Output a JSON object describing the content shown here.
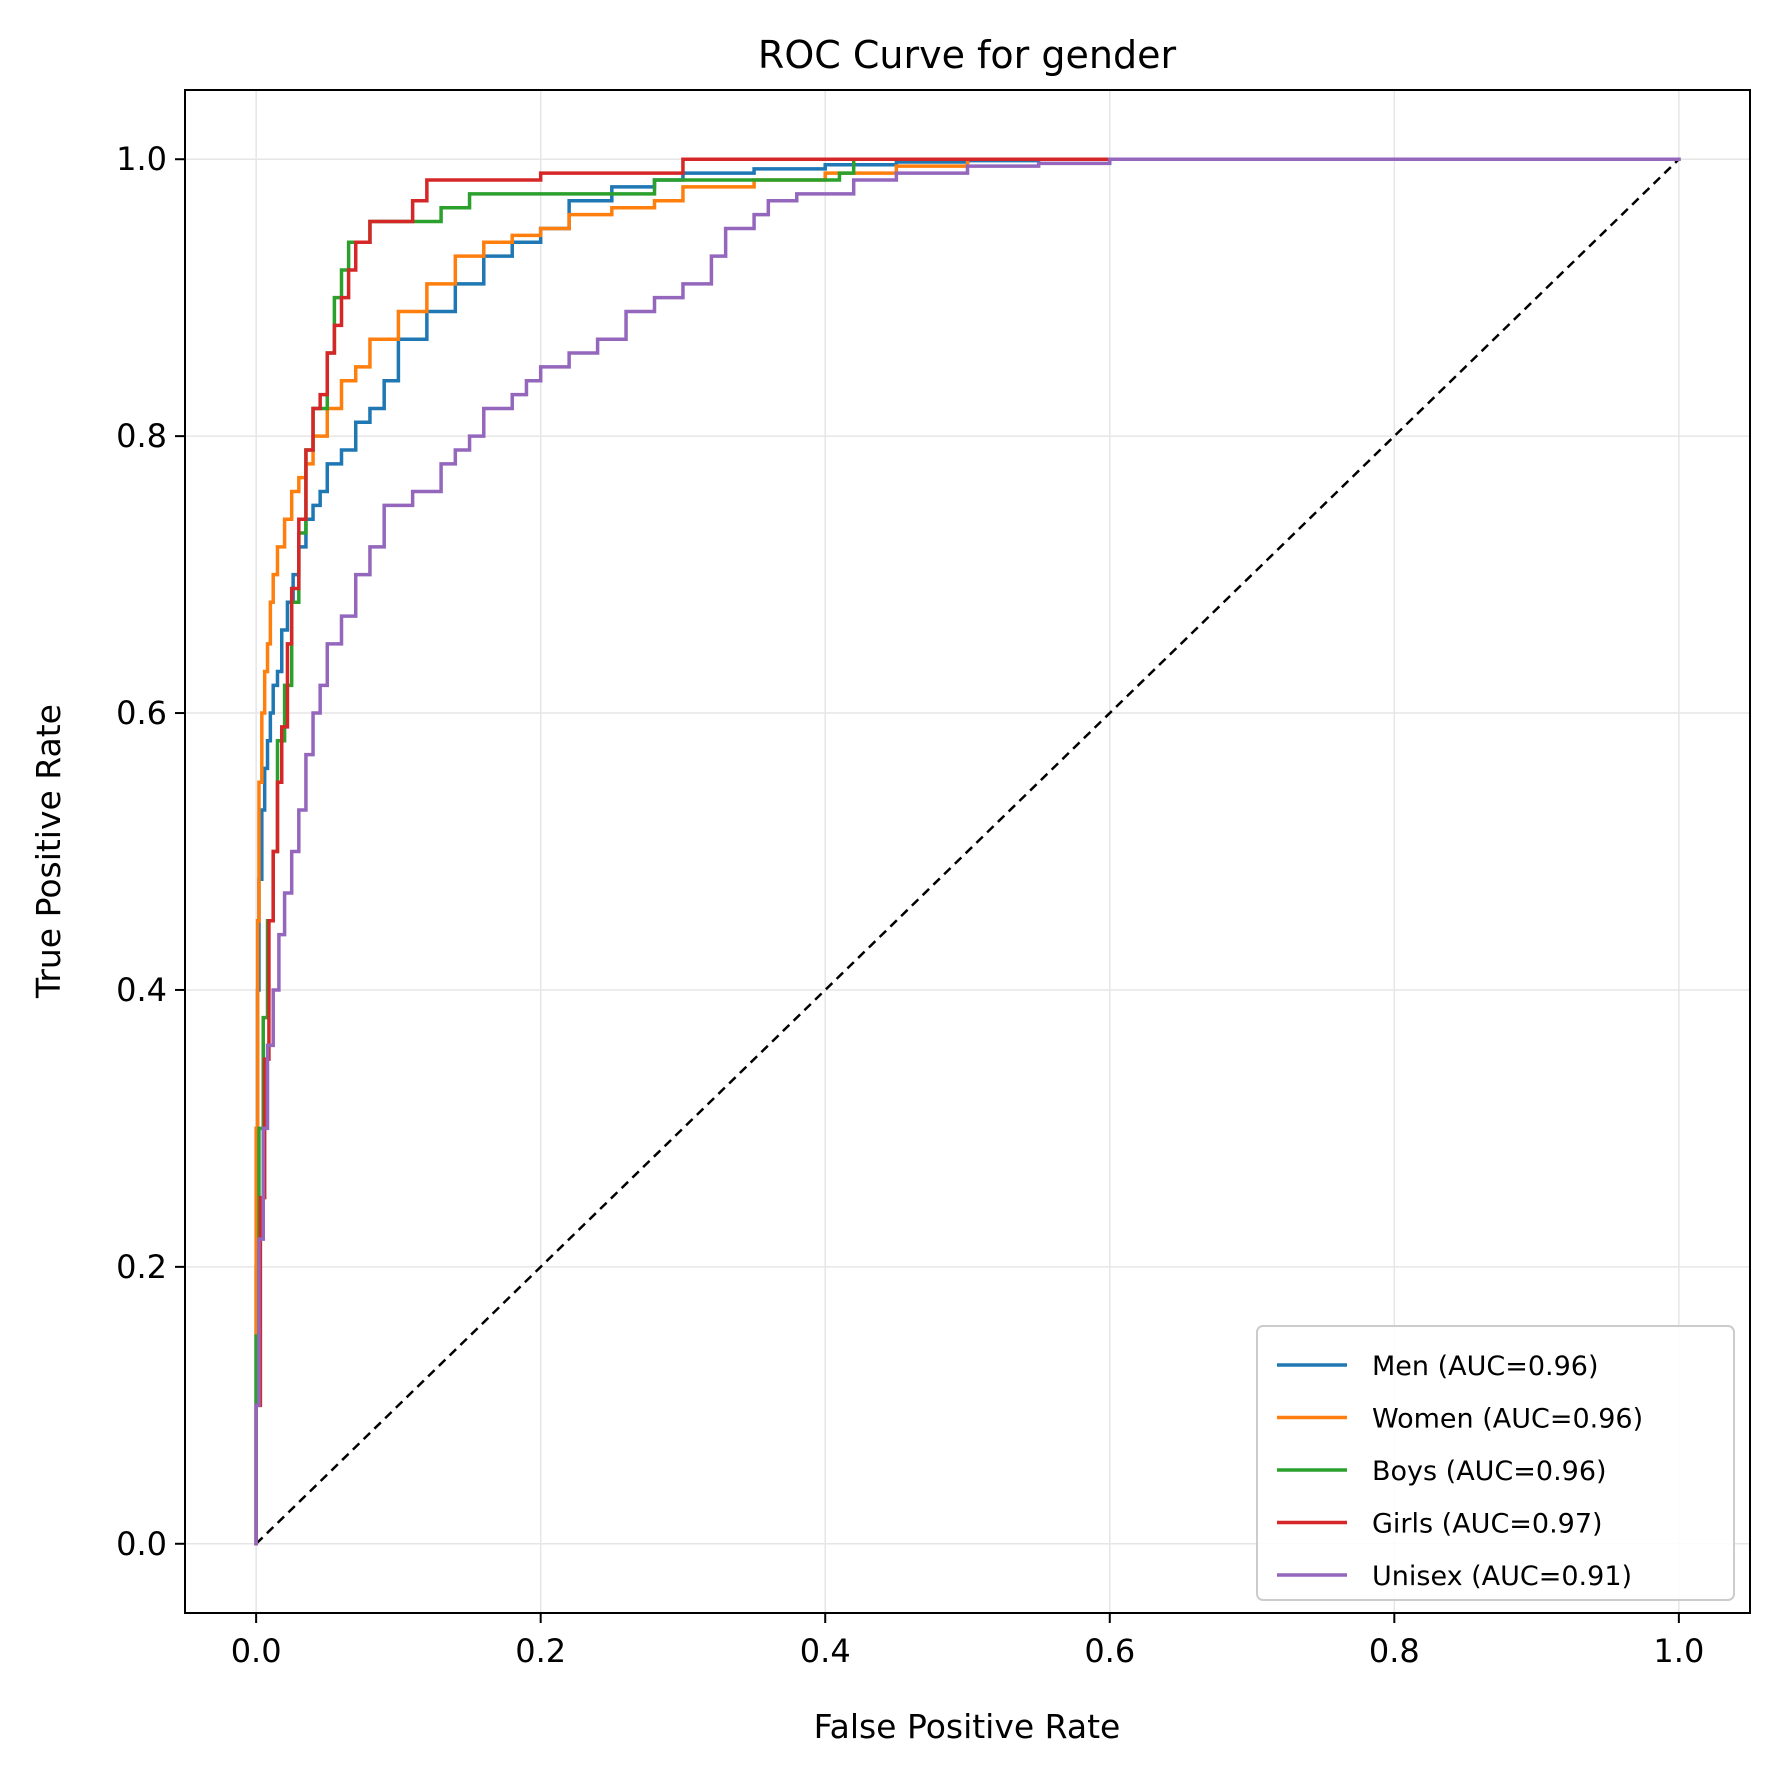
{
  "chart_data": {
    "type": "line",
    "title": "ROC Curve for gender",
    "xlabel": "False Positive Rate",
    "ylabel": "True Positive Rate",
    "xlim": [
      -0.05,
      1.05
    ],
    "ylim": [
      -0.05,
      1.05
    ],
    "xticks": [
      "0.0",
      "0.2",
      "0.4",
      "0.6",
      "0.8",
      "1.0"
    ],
    "yticks": [
      "0.0",
      "0.2",
      "0.4",
      "0.6",
      "0.8",
      "1.0"
    ],
    "grid": true,
    "legend_position": "lower-right",
    "series": [
      {
        "name": "Men (AUC=0.96)",
        "color": "#1f77b4",
        "x": [
          0,
          0.001,
          0.002,
          0.004,
          0.006,
          0.008,
          0.01,
          0.012,
          0.015,
          0.018,
          0.022,
          0.026,
          0.03,
          0.035,
          0.04,
          0.045,
          0.05,
          0.06,
          0.07,
          0.08,
          0.09,
          0.1,
          0.12,
          0.14,
          0.16,
          0.18,
          0.2,
          0.22,
          0.25,
          0.28,
          0.3,
          0.35,
          0.4,
          0.45,
          0.5,
          0.55,
          0.6,
          1.0
        ],
        "y": [
          0,
          0.2,
          0.4,
          0.48,
          0.53,
          0.56,
          0.58,
          0.6,
          0.62,
          0.63,
          0.66,
          0.68,
          0.7,
          0.72,
          0.74,
          0.75,
          0.76,
          0.78,
          0.79,
          0.81,
          0.82,
          0.84,
          0.87,
          0.89,
          0.91,
          0.93,
          0.94,
          0.95,
          0.97,
          0.98,
          0.985,
          0.99,
          0.993,
          0.996,
          0.998,
          0.999,
          1.0,
          1.0
        ]
      },
      {
        "name": "Women (AUC=0.96)",
        "color": "#ff7f0e",
        "x": [
          0,
          0.001,
          0.002,
          0.004,
          0.006,
          0.008,
          0.01,
          0.012,
          0.015,
          0.02,
          0.025,
          0.03,
          0.035,
          0.04,
          0.05,
          0.06,
          0.07,
          0.08,
          0.1,
          0.12,
          0.14,
          0.16,
          0.18,
          0.2,
          0.22,
          0.25,
          0.28,
          0.3,
          0.35,
          0.4,
          0.45,
          0.5,
          0.55,
          1.0
        ],
        "y": [
          0,
          0.3,
          0.45,
          0.55,
          0.6,
          0.63,
          0.65,
          0.68,
          0.7,
          0.72,
          0.74,
          0.76,
          0.77,
          0.78,
          0.8,
          0.82,
          0.84,
          0.85,
          0.87,
          0.89,
          0.91,
          0.93,
          0.94,
          0.945,
          0.95,
          0.96,
          0.965,
          0.97,
          0.98,
          0.985,
          0.99,
          0.995,
          1.0,
          1.0
        ]
      },
      {
        "name": "Boys (AUC=0.96)",
        "color": "#2ca02c",
        "x": [
          0,
          0.002,
          0.005,
          0.008,
          0.012,
          0.015,
          0.02,
          0.025,
          0.03,
          0.035,
          0.04,
          0.045,
          0.05,
          0.055,
          0.06,
          0.065,
          0.07,
          0.075,
          0.08,
          0.13,
          0.15,
          0.28,
          0.41,
          0.42,
          0.475,
          1.0
        ],
        "y": [
          0,
          0.15,
          0.3,
          0.38,
          0.45,
          0.5,
          0.58,
          0.62,
          0.68,
          0.73,
          0.79,
          0.82,
          0.82,
          0.86,
          0.9,
          0.92,
          0.94,
          0.94,
          0.94,
          0.955,
          0.965,
          0.975,
          0.985,
          0.99,
          1.0,
          1.0
        ]
      },
      {
        "name": "Girls (AUC=0.97)",
        "color": "#d62728",
        "x": [
          0,
          0.003,
          0.006,
          0.009,
          0.012,
          0.015,
          0.018,
          0.022,
          0.025,
          0.03,
          0.035,
          0.04,
          0.045,
          0.05,
          0.055,
          0.06,
          0.065,
          0.07,
          0.075,
          0.08,
          0.09,
          0.1,
          0.11,
          0.12,
          0.13,
          0.2,
          0.3,
          0.335,
          0.4,
          0.5,
          0.64
        ],
        "y": [
          0,
          0.1,
          0.25,
          0.35,
          0.45,
          0.5,
          0.55,
          0.59,
          0.65,
          0.69,
          0.74,
          0.79,
          0.82,
          0.83,
          0.86,
          0.88,
          0.9,
          0.92,
          0.94,
          0.94,
          0.955,
          0.955,
          0.955,
          0.97,
          0.985,
          0.985,
          0.99,
          1.0,
          1.0,
          1.0,
          1.0
        ]
      },
      {
        "name": "Unisex (AUC=0.91)",
        "color": "#9467bd",
        "x": [
          0,
          0.002,
          0.005,
          0.008,
          0.012,
          0.016,
          0.02,
          0.025,
          0.03,
          0.035,
          0.04,
          0.045,
          0.05,
          0.06,
          0.07,
          0.08,
          0.09,
          0.1,
          0.11,
          0.12,
          0.13,
          0.14,
          0.15,
          0.16,
          0.18,
          0.19,
          0.2,
          0.22,
          0.24,
          0.26,
          0.28,
          0.3,
          0.32,
          0.33,
          0.35,
          0.36,
          0.38,
          0.42,
          0.45,
          0.5,
          0.55,
          0.6,
          0.64,
          1.0
        ],
        "y": [
          0,
          0.1,
          0.22,
          0.3,
          0.36,
          0.4,
          0.44,
          0.47,
          0.5,
          0.53,
          0.57,
          0.6,
          0.62,
          0.65,
          0.67,
          0.7,
          0.72,
          0.75,
          0.75,
          0.76,
          0.76,
          0.78,
          0.79,
          0.8,
          0.82,
          0.83,
          0.84,
          0.85,
          0.86,
          0.87,
          0.89,
          0.9,
          0.91,
          0.93,
          0.95,
          0.96,
          0.97,
          0.975,
          0.985,
          0.99,
          0.995,
          0.997,
          1.0,
          1.0
        ]
      }
    ],
    "reference_line": {
      "x": [
        0,
        1
      ],
      "y": [
        0,
        1
      ],
      "color": "#000000",
      "style": "dashed"
    }
  }
}
